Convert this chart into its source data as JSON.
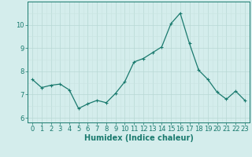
{
  "x": [
    0,
    1,
    2,
    3,
    4,
    5,
    6,
    7,
    8,
    9,
    10,
    11,
    12,
    13,
    14,
    15,
    16,
    17,
    18,
    19,
    20,
    21,
    22,
    23
  ],
  "y": [
    7.65,
    7.3,
    7.4,
    7.45,
    7.2,
    6.4,
    6.6,
    6.75,
    6.65,
    7.05,
    7.55,
    8.4,
    8.55,
    8.8,
    9.05,
    10.05,
    10.5,
    9.2,
    8.05,
    7.65,
    7.1,
    6.8,
    7.15,
    6.75
  ],
  "line_color": "#1a7a6e",
  "marker": "+",
  "marker_size": 3,
  "marker_edge_width": 0.8,
  "xlabel": "Humidex (Indice chaleur)",
  "ylim": [
    5.8,
    11.0
  ],
  "xlim": [
    -0.5,
    23.5
  ],
  "yticks": [
    6,
    7,
    8,
    9,
    10
  ],
  "xticks": [
    0,
    1,
    2,
    3,
    4,
    5,
    6,
    7,
    8,
    9,
    10,
    11,
    12,
    13,
    14,
    15,
    16,
    17,
    18,
    19,
    20,
    21,
    22,
    23
  ],
  "bg_color": "#d4edec",
  "grid_major_color": "#b8d8d4",
  "grid_minor_color": "#c8e4e0",
  "line_width": 0.9,
  "xlabel_fontsize": 7,
  "tick_fontsize": 6,
  "ytick_labels": [
    "6",
    "7",
    "8",
    "9",
    "10"
  ]
}
